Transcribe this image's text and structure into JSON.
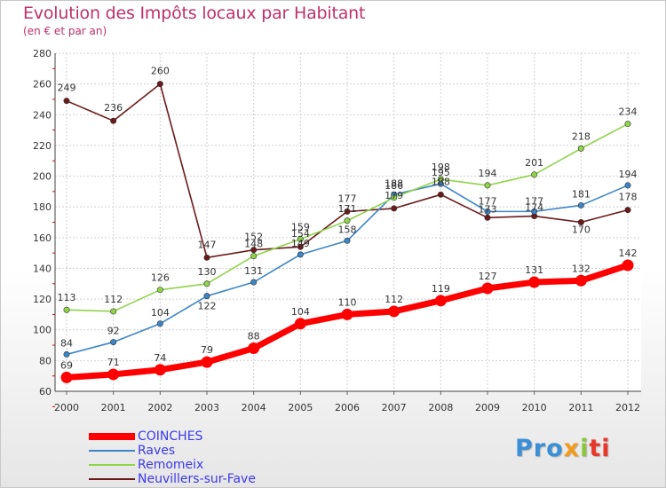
{
  "title": "Evolution des Impôts locaux par Habitant",
  "subtitle": "(en € et par an)",
  "logo": [
    "Pro",
    "x",
    "i",
    "ti"
  ],
  "chart_data": {
    "type": "line",
    "title": "Evolution des Impôts locaux par Habitant",
    "subtitle": "(en € et par an)",
    "xlabel": "",
    "ylabel": "",
    "categories": [
      "2000",
      "2001",
      "2002",
      "2003",
      "2004",
      "2005",
      "2006",
      "2007",
      "2008",
      "2009",
      "2010",
      "2011",
      "2012"
    ],
    "ylim": [
      60,
      280
    ],
    "yticks": [
      60,
      80,
      100,
      120,
      140,
      160,
      180,
      200,
      220,
      240,
      260,
      280
    ],
    "grid": true,
    "legend_position": "bottom-left",
    "series": [
      {
        "name": "COINCHES",
        "color": "#ff0000",
        "values": [
          69,
          71,
          74,
          79,
          88,
          104,
          110,
          112,
          119,
          127,
          131,
          132,
          142
        ]
      },
      {
        "name": "Raves",
        "color": "#3d85c6",
        "values": [
          84,
          92,
          104,
          122,
          131,
          149,
          158,
          188,
          195,
          177,
          177,
          181,
          194
        ]
      },
      {
        "name": "Remomeix",
        "color": "#8fd44a",
        "values": [
          113,
          112,
          126,
          130,
          148,
          159,
          171,
          186,
          198,
          194,
          201,
          218,
          234
        ]
      },
      {
        "name": "Neuvillers-sur-Fave",
        "color": "#6b1a1a",
        "values": [
          249,
          236,
          260,
          147,
          152,
          154,
          177,
          179,
          188,
          173,
          174,
          170,
          178
        ]
      }
    ]
  }
}
